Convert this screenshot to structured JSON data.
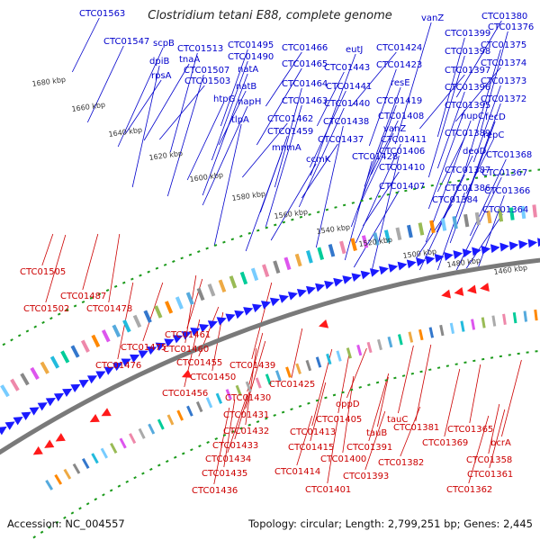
{
  "title": "Clostridium tetani E88, complete genome",
  "footer": {
    "accession": "Accession: NC_004557",
    "summary": "Topology: circular; Length: 2,799,251 bp; Genes: 2,445"
  },
  "colors": {
    "forward_label": "#0000cc",
    "reverse_label": "#cc0000",
    "forward_arrow": "#1a1aff",
    "reverse_arrow": "#ff1a1a",
    "backbone": "#7a7a7a",
    "tick": "#1a9a1a"
  },
  "kbp_labels": [
    "1680 kbp",
    "1660 kbp",
    "1640 kbp",
    "1620 kbp",
    "1600 kbp",
    "1580 kbp",
    "1560 kbp",
    "1540 kbp",
    "1520 kbp",
    "1500 kbp",
    "1480 kbp",
    "1460 kbp"
  ],
  "forward_genes": [
    "CTC01563",
    "CTC01547",
    "scpB",
    "dpiB",
    "rpsA",
    "tnaA",
    "CTC01513",
    "CTC01507",
    "CTC01503",
    "CTC01495",
    "CTC01490",
    "natA",
    "natB",
    "htpG",
    "napH",
    "tlpA",
    "CTC01466",
    "CTC01465",
    "CTC01464",
    "CTC01463",
    "CTC01462",
    "CTC01459",
    "mnmA",
    "eutJ",
    "CTC01443",
    "CTC01441",
    "CTC01440",
    "CTC01438",
    "CTC01437",
    "ccmK",
    "CTC01428",
    "vanZ",
    "CTC01424",
    "CTC01423",
    "resE",
    "CTC01419",
    "CTC01408",
    "vanZ",
    "CTC01411",
    "CTC01406",
    "CTC01410",
    "CTC01407",
    "CTC01399",
    "CTC01398",
    "CTC01397",
    "CTC01396",
    "CTC01395",
    "nupC",
    "CTC01389",
    "deoD",
    "CTC01387",
    "CTC01386",
    "CTC01384",
    "CTC01380",
    "CTC01376",
    "CTC01375",
    "CTC01374",
    "CTC01373",
    "CTC01372",
    "fecD",
    "repC",
    "CTC01368",
    "CTC01367",
    "CTC01366",
    "CTC01364"
  ],
  "reverse_genes": [
    "CTC01505",
    "CTC01487",
    "CTC01502",
    "CTC01478",
    "CTC01461",
    "CTC01475",
    "CTC01460",
    "CTC01476",
    "CTC01455",
    "CTC01450",
    "CTC01456",
    "CTC01439",
    "CTC01425",
    "CTC01430",
    "CTC01431",
    "CTC01432",
    "CTC01433",
    "CTC01434",
    "CTC01435",
    "CTC01436",
    "oppD",
    "CTC01405",
    "tauC",
    "CTC01413",
    "tauB",
    "CTC01415",
    "CTC01391",
    "CTC01400",
    "CTC01414",
    "CTC01393",
    "CTC01401",
    "CTC01381",
    "CTC01382",
    "CTC01365",
    "CTC01369",
    "bcrA",
    "CTC01358",
    "CTC01361",
    "CTC01362"
  ]
}
